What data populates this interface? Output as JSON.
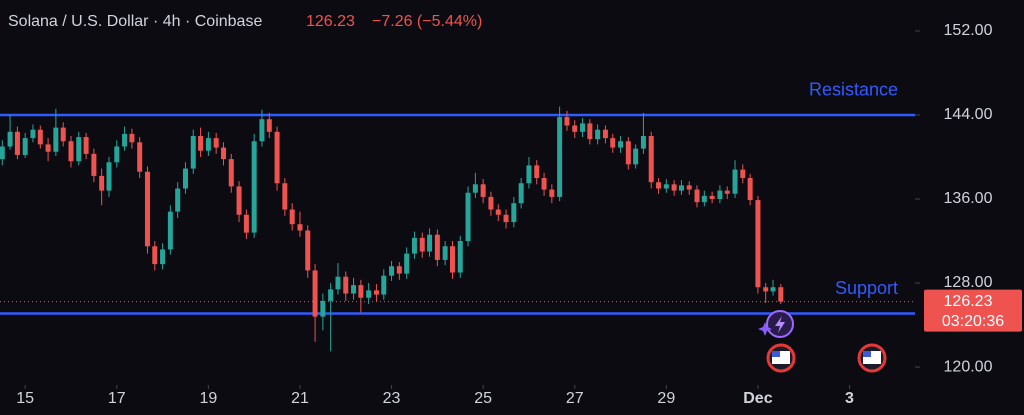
{
  "chart_data": {
    "type": "candlestick",
    "title": "Solana / U.S. Dollar · 4h · Coinbase",
    "last_price": 126.23,
    "change_label": "−7.26 (−5.44%)",
    "countdown": "03:20:36",
    "up_color": "#26a69a",
    "down_color": "#ef5350",
    "xlim": [
      14.45,
      34.43
    ],
    "xticks": [
      15,
      17,
      19,
      21,
      23,
      25,
      27,
      29,
      {
        "value": 31,
        "label": "Dec"
      },
      {
        "value": 33,
        "label": "3"
      }
    ],
    "ylim": [
      118.29,
      154.95
    ],
    "yticks": [
      {
        "value": 152,
        "label": "152.00"
      },
      {
        "value": 144,
        "label": "144.00"
      },
      {
        "value": 136,
        "label": "136.00"
      },
      {
        "value": 128,
        "label": "128.00"
      },
      {
        "value": 120,
        "label": "120.00"
      }
    ],
    "levels": [
      {
        "label": "Resistance",
        "value": 144,
        "color": "#2f5bff"
      },
      {
        "label": "Support",
        "value": 125.1,
        "color": "#2f5bff"
      }
    ],
    "x": [
      14.5,
      14.67,
      14.83,
      15,
      15.17,
      15.33,
      15.5,
      15.67,
      15.83,
      16,
      16.17,
      16.33,
      16.5,
      16.67,
      16.83,
      17,
      17.17,
      17.33,
      17.5,
      17.67,
      17.83,
      18,
      18.17,
      18.33,
      18.5,
      18.67,
      18.83,
      19,
      19.17,
      19.33,
      19.5,
      19.67,
      19.83,
      20,
      20.17,
      20.33,
      20.5,
      20.67,
      20.83,
      21,
      21.17,
      21.33,
      21.5,
      21.67,
      21.83,
      22,
      22.17,
      22.33,
      22.5,
      22.67,
      22.83,
      23,
      23.17,
      23.33,
      23.5,
      23.67,
      23.83,
      24,
      24.17,
      24.33,
      24.5,
      24.67,
      24.83,
      25,
      25.17,
      25.33,
      25.5,
      25.67,
      25.83,
      26,
      26.17,
      26.33,
      26.5,
      26.67,
      26.83,
      27,
      27.17,
      27.33,
      27.5,
      27.67,
      27.83,
      28,
      28.17,
      28.33,
      28.5,
      28.67,
      28.83,
      29,
      29.17,
      29.33,
      29.5,
      29.67,
      29.83,
      30,
      30.17,
      30.33,
      30.5,
      30.67,
      30.83,
      31,
      31.17,
      31.33,
      31.5
    ],
    "ohlc": [
      [
        139.8,
        141.6,
        139.2,
        141.0
      ],
      [
        141.0,
        144.0,
        140.7,
        142.4
      ],
      [
        142.4,
        142.9,
        139.8,
        140.2
      ],
      [
        140.2,
        142.3,
        139.9,
        141.8
      ],
      [
        141.8,
        143.1,
        141.4,
        142.6
      ],
      [
        142.6,
        143.0,
        140.8,
        141.2
      ],
      [
        141.2,
        141.8,
        139.6,
        140.5
      ],
      [
        140.5,
        144.6,
        140.1,
        142.8
      ],
      [
        142.8,
        143.3,
        141.0,
        141.5
      ],
      [
        141.5,
        142.0,
        139.0,
        139.6
      ],
      [
        139.6,
        142.4,
        139.2,
        141.9
      ],
      [
        141.9,
        142.3,
        139.8,
        140.3
      ],
      [
        140.3,
        140.8,
        137.6,
        138.2
      ],
      [
        138.2,
        138.9,
        135.4,
        136.8
      ],
      [
        136.8,
        140.0,
        136.2,
        139.5
      ],
      [
        139.5,
        141.6,
        139.0,
        141.0
      ],
      [
        141.0,
        142.9,
        140.6,
        142.2
      ],
      [
        142.2,
        142.7,
        140.8,
        141.4
      ],
      [
        141.4,
        141.9,
        138.0,
        138.6
      ],
      [
        138.6,
        139.1,
        130.8,
        131.5
      ],
      [
        131.5,
        132.0,
        129.2,
        129.8
      ],
      [
        129.8,
        131.8,
        129.3,
        131.2
      ],
      [
        131.2,
        135.4,
        130.7,
        134.8
      ],
      [
        134.8,
        137.6,
        134.2,
        137.0
      ],
      [
        137.0,
        139.5,
        136.5,
        138.9
      ],
      [
        138.9,
        142.6,
        138.4,
        142.0
      ],
      [
        142.0,
        142.8,
        140.0,
        140.6
      ],
      [
        140.6,
        142.4,
        140.1,
        141.8
      ],
      [
        141.8,
        142.3,
        140.3,
        140.9
      ],
      [
        140.9,
        141.4,
        139.2,
        139.8
      ],
      [
        139.8,
        140.3,
        136.6,
        137.2
      ],
      [
        137.2,
        137.7,
        133.8,
        134.5
      ],
      [
        134.5,
        135.0,
        132.2,
        132.8
      ],
      [
        132.8,
        142.2,
        132.3,
        141.5
      ],
      [
        141.5,
        144.5,
        141.0,
        143.6
      ],
      [
        143.6,
        144.2,
        141.8,
        142.4
      ],
      [
        142.4,
        142.9,
        136.8,
        137.5
      ],
      [
        137.5,
        138.0,
        134.4,
        135.0
      ],
      [
        135.0,
        135.6,
        133.0,
        133.6
      ],
      [
        133.6,
        134.8,
        132.4,
        133.0
      ],
      [
        133.0,
        133.5,
        128.5,
        129.2
      ],
      [
        129.2,
        129.8,
        122.4,
        124.8
      ],
      [
        124.8,
        127.0,
        123.5,
        126.3
      ],
      [
        126.3,
        128.0,
        121.5,
        127.4
      ],
      [
        127.4,
        129.9,
        126.9,
        128.6
      ],
      [
        128.6,
        129.1,
        126.3,
        127.0
      ],
      [
        127.0,
        128.5,
        126.4,
        127.8
      ],
      [
        127.8,
        128.3,
        125.2,
        126.6
      ],
      [
        126.6,
        128.0,
        126.0,
        127.3
      ],
      [
        127.3,
        127.9,
        126.2,
        126.9
      ],
      [
        126.9,
        129.3,
        126.4,
        128.7
      ],
      [
        128.7,
        130.1,
        128.2,
        129.6
      ],
      [
        129.6,
        130.0,
        128.3,
        128.9
      ],
      [
        128.9,
        131.4,
        128.4,
        130.8
      ],
      [
        130.8,
        132.9,
        130.3,
        132.3
      ],
      [
        132.3,
        132.8,
        130.4,
        131.0
      ],
      [
        131.0,
        133.2,
        130.5,
        132.6
      ],
      [
        132.6,
        133.1,
        129.6,
        130.2
      ],
      [
        130.2,
        132.0,
        129.7,
        131.5
      ],
      [
        131.5,
        132.0,
        128.4,
        129.0
      ],
      [
        129.0,
        132.5,
        128.5,
        132.0
      ],
      [
        132.0,
        137.2,
        131.5,
        136.6
      ],
      [
        136.6,
        138.5,
        136.1,
        137.4
      ],
      [
        137.4,
        137.9,
        135.6,
        136.2
      ],
      [
        136.2,
        136.7,
        134.4,
        135.0
      ],
      [
        135.0,
        135.5,
        133.9,
        134.5
      ],
      [
        134.5,
        135.0,
        133.2,
        133.8
      ],
      [
        133.8,
        136.2,
        133.3,
        135.6
      ],
      [
        135.6,
        138.0,
        135.1,
        137.5
      ],
      [
        137.5,
        140.0,
        137.0,
        139.2
      ],
      [
        139.2,
        139.7,
        137.4,
        138.0
      ],
      [
        138.0,
        138.5,
        136.3,
        136.9
      ],
      [
        136.9,
        137.4,
        135.6,
        136.2
      ],
      [
        136.2,
        144.8,
        135.8,
        143.8
      ],
      [
        143.8,
        144.4,
        142.5,
        143.0
      ],
      [
        143.0,
        143.5,
        141.8,
        142.4
      ],
      [
        142.4,
        143.7,
        141.9,
        143.2
      ],
      [
        143.2,
        143.6,
        141.2,
        141.7
      ],
      [
        141.7,
        143.1,
        141.2,
        142.6
      ],
      [
        142.6,
        143.0,
        141.3,
        141.8
      ],
      [
        141.8,
        142.2,
        140.4,
        140.9
      ],
      [
        140.9,
        142.0,
        140.4,
        141.5
      ],
      [
        141.5,
        141.9,
        138.8,
        139.3
      ],
      [
        139.3,
        141.2,
        138.9,
        140.8
      ],
      [
        140.8,
        144.2,
        140.3,
        142.0
      ],
      [
        142.0,
        142.4,
        137.0,
        137.6
      ],
      [
        137.6,
        138.0,
        136.5,
        137.0
      ],
      [
        137.0,
        137.9,
        136.6,
        137.4
      ],
      [
        137.4,
        137.8,
        136.3,
        136.8
      ],
      [
        136.8,
        137.8,
        136.4,
        137.3
      ],
      [
        137.3,
        137.7,
        136.4,
        136.9
      ],
      [
        136.9,
        137.3,
        135.2,
        135.7
      ],
      [
        135.7,
        136.8,
        135.3,
        136.3
      ],
      [
        136.3,
        136.7,
        135.6,
        136.0
      ],
      [
        136.0,
        137.3,
        135.6,
        136.8
      ],
      [
        136.8,
        137.2,
        136.0,
        136.5
      ],
      [
        136.5,
        139.7,
        136.1,
        138.8
      ],
      [
        138.8,
        139.3,
        137.5,
        138.0
      ],
      [
        138.0,
        138.4,
        135.4,
        135.9
      ],
      [
        135.9,
        136.3,
        127.0,
        127.6
      ],
      [
        127.6,
        128.0,
        126.1,
        127.2
      ],
      [
        127.2,
        128.3,
        126.8,
        127.6
      ],
      [
        127.6,
        127.9,
        126.0,
        126.23
      ]
    ]
  }
}
